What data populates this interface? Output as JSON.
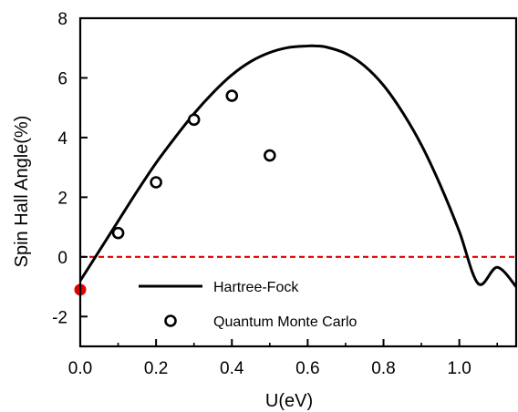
{
  "chart_data": {
    "type": "line",
    "xlabel": "U(eV)",
    "ylabel": "Spin Hall Angle(%)",
    "xlim": [
      0.0,
      1.15
    ],
    "ylim": [
      -3,
      8
    ],
    "x_ticks": [
      0.0,
      0.2,
      0.4,
      0.6,
      0.8,
      1.0
    ],
    "y_ticks": [
      -2,
      0,
      2,
      4,
      6,
      8
    ],
    "legend_placement": "lower-left",
    "grid": false,
    "series": [
      {
        "name": "Hartree-Fock",
        "type": "line",
        "color": "#000000",
        "x": [
          0.0,
          0.05,
          0.1,
          0.15,
          0.2,
          0.25,
          0.3,
          0.35,
          0.4,
          0.45,
          0.5,
          0.55,
          0.6,
          0.62,
          0.65,
          0.7,
          0.75,
          0.8,
          0.85,
          0.9,
          0.95,
          1.0,
          1.05,
          1.1,
          1.15
        ],
        "y": [
          -0.8,
          0.2,
          1.2,
          2.2,
          3.15,
          4.0,
          4.8,
          5.5,
          6.1,
          6.55,
          6.85,
          7.02,
          7.07,
          7.07,
          7.03,
          6.82,
          6.4,
          5.75,
          4.85,
          3.75,
          2.4,
          0.85,
          -0.9,
          -0.35,
          -1.0
        ],
        "line_style": "solid"
      },
      {
        "name": "Quantum Monte Carlo",
        "type": "scatter",
        "marker": "open-circle",
        "color": "#000000",
        "x": [
          0.1,
          0.2,
          0.3,
          0.4,
          0.5
        ],
        "y": [
          0.8,
          2.5,
          4.6,
          5.4,
          3.4
        ]
      }
    ],
    "reference_lines": [
      {
        "axis": "y",
        "value": 0,
        "color": "#e00000",
        "style": "dashed"
      }
    ],
    "extra_points": [
      {
        "x": 0.0,
        "y": -1.1,
        "color": "#e00000",
        "marker": "filled-circle"
      }
    ]
  }
}
